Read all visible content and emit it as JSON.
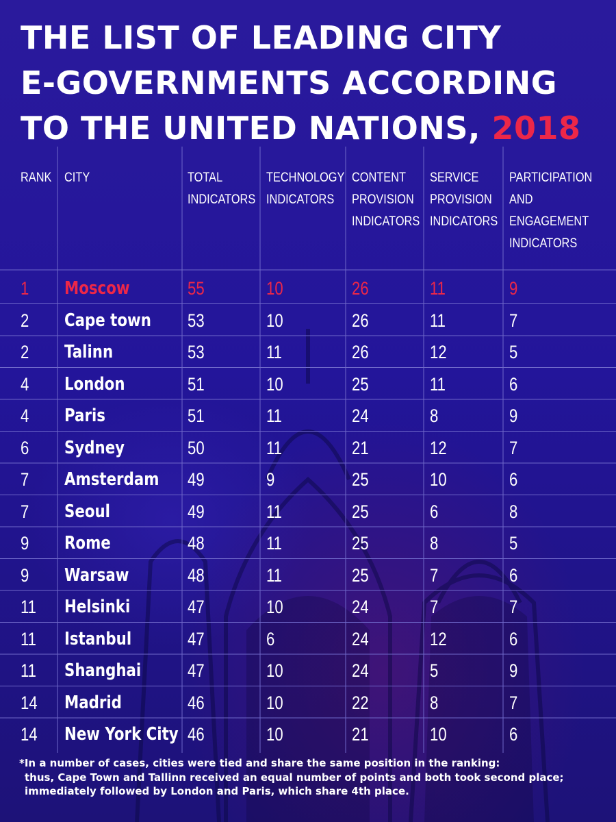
{
  "title": {
    "line1": "THE LIST OF LEADING CITY",
    "line2": "E-GOVERNMENTS ACCORDING",
    "line3": "TO THE UNITED NATIONS,",
    "year": "2018"
  },
  "colors": {
    "background": "#241494",
    "highlight": "#ec2748",
    "text": "#ffffff",
    "grid": "#6f68c9"
  },
  "chart_data": {
    "type": "table",
    "columns": [
      "RANK",
      "CITY",
      "TOTAL\nINDICATORS",
      "TECHNOLOGY\nINDICATORS",
      "CONTENT\nPROVISION\nINDICATORS",
      "SERVICE\nPROVISION\nINDICATORS",
      "PARTICIPATION\nAND\nENGAGEMENT\nINDICATORS"
    ],
    "highlight_row": 0,
    "rows": [
      [
        "1",
        "Moscow",
        "55",
        "10",
        "26",
        "11",
        "9"
      ],
      [
        "2",
        "Cape town",
        "53",
        "10",
        "26",
        "11",
        "7"
      ],
      [
        "2",
        "Talinn",
        "53",
        "11",
        "26",
        "12",
        "5"
      ],
      [
        "4",
        "London",
        "51",
        "10",
        "25",
        "11",
        "6"
      ],
      [
        "4",
        "Paris",
        "51",
        "11",
        "24",
        "8",
        "9"
      ],
      [
        "6",
        "Sydney",
        "50",
        "11",
        "21",
        "12",
        "7"
      ],
      [
        "7",
        "Amsterdam",
        "49",
        "9",
        "25",
        "10",
        "6"
      ],
      [
        "7",
        "Seoul",
        "49",
        "11",
        "25",
        "6",
        "8"
      ],
      [
        "9",
        "Rome",
        "48",
        "11",
        "25",
        "8",
        "5"
      ],
      [
        "9",
        "Warsaw",
        "48",
        "11",
        "25",
        "7",
        "6"
      ],
      [
        "11",
        "Helsinki",
        "47",
        "10",
        "24",
        "7",
        "7"
      ],
      [
        "11",
        "Istanbul",
        "47",
        "6",
        "24",
        "12",
        "6"
      ],
      [
        "11",
        "Shanghai",
        "47",
        "10",
        "24",
        "5",
        "9"
      ],
      [
        "14",
        "Madrid",
        "46",
        "10",
        "22",
        "8",
        "7"
      ],
      [
        "14",
        "New York City",
        "46",
        "10",
        "21",
        "10",
        "6"
      ]
    ]
  },
  "footnote": {
    "line1": "*In a number of cases, cities were tied and share the same position in the ranking:",
    "line2": "thus, Cape Town and Tallinn received an equal number of points and both took second place;",
    "line3": "immediately followed by London and Paris, which share 4th place."
  }
}
